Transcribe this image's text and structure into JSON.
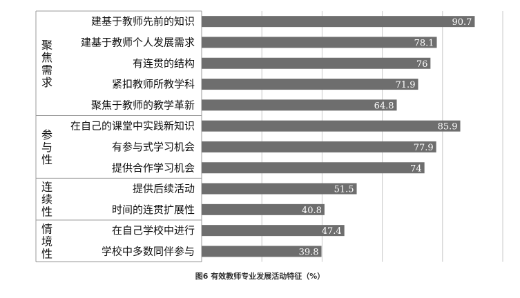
{
  "caption": "图6 有效教师专业发展活动特征（%）",
  "chart_data": {
    "type": "bar",
    "orientation": "horizontal",
    "xlim": [
      0,
      100
    ],
    "grid": true,
    "bar_color": "#6e6e6e",
    "groups": [
      {
        "label": "聚焦需求",
        "items": [
          {
            "category": "建基于教师先前的知识",
            "value": 90.7
          },
          {
            "category": "建基于教师个人发展需求",
            "value": 78.1
          },
          {
            "category": "有连贯的结构",
            "value": 76
          },
          {
            "category": "紧扣教师所教学科",
            "value": 71.9
          },
          {
            "category": "聚焦于教师的教学革新",
            "value": 64.8
          }
        ]
      },
      {
        "label": "参与性",
        "items": [
          {
            "category": "在自己的课堂中实践新知识",
            "value": 85.9
          },
          {
            "category": "有参与式学习机会",
            "value": 77.9
          },
          {
            "category": "提供合作学习机会",
            "value": 74
          }
        ]
      },
      {
        "label": "连续性",
        "items": [
          {
            "category": "提供后续活动",
            "value": 51.5
          },
          {
            "category": "时间的连贯扩展性",
            "value": 40.8
          }
        ]
      },
      {
        "label": "情境性",
        "items": [
          {
            "category": "在自己学校中进行",
            "value": 47.4
          },
          {
            "category": "学校中多数同伴参与",
            "value": 39.8
          }
        ]
      }
    ]
  }
}
